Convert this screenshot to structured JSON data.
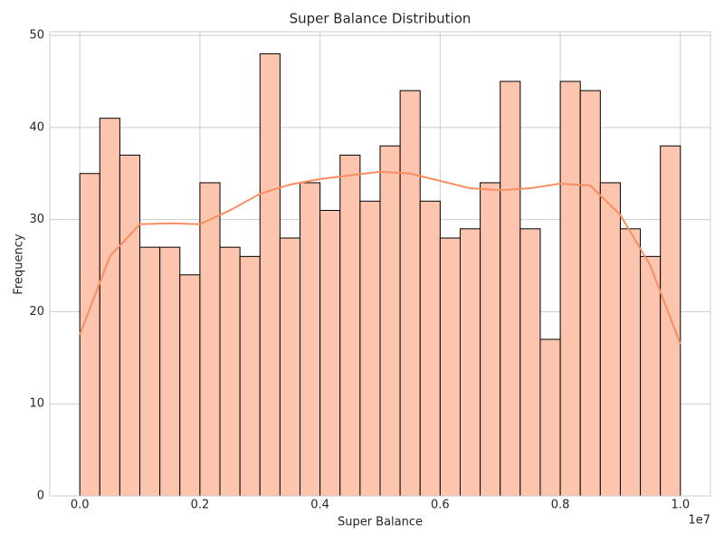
{
  "chart_data": {
    "type": "histogram",
    "title": "Super Balance Distribution",
    "xlabel": "Super Balance",
    "ylabel": "Frequency",
    "x_offset_label": "1e7",
    "bins": [
      0,
      333333,
      666667,
      1000000,
      1333333,
      1666667,
      2000000,
      2333333,
      2666667,
      3000000,
      3333333,
      3666667,
      4000000,
      4333333,
      4666667,
      5000000,
      5333333,
      5666667,
      6000000,
      6333333,
      6666667,
      7000000,
      7333333,
      7666667,
      8000000,
      8333333,
      8666667,
      9000000,
      9333333,
      9666667,
      10000000
    ],
    "counts": [
      35,
      41,
      37,
      27,
      27,
      24,
      34,
      27,
      26,
      48,
      28,
      34,
      31,
      37,
      32,
      38,
      44,
      32,
      28,
      29,
      34,
      45,
      29,
      17,
      45,
      44,
      34,
      29,
      26,
      38
    ],
    "color": "#fdc5ae",
    "edgecolor": "#000000",
    "kde": {
      "color": "#fc8d62",
      "x": [
        0,
        500000,
        1000000,
        1500000,
        2000000,
        2500000,
        3000000,
        3500000,
        4000000,
        4500000,
        5000000,
        5500000,
        6000000,
        6500000,
        7000000,
        7500000,
        8000000,
        8500000,
        9000000,
        9500000,
        10000000
      ],
      "y": [
        17.5,
        26,
        29.5,
        29.6,
        29.5,
        31,
        32.8,
        33.8,
        34.4,
        34.8,
        35.2,
        35,
        34.2,
        33.4,
        33.2,
        33.4,
        33.9,
        33.7,
        30.5,
        25,
        16.5
      ]
    },
    "xlim": [
      -500000,
      10500000
    ],
    "ylim": [
      0,
      50.4
    ],
    "xticks": [
      {
        "value": 0,
        "label": "0.0"
      },
      {
        "value": 2000000,
        "label": "0.2"
      },
      {
        "value": 4000000,
        "label": "0.4"
      },
      {
        "value": 6000000,
        "label": "0.6"
      },
      {
        "value": 8000000,
        "label": "0.8"
      },
      {
        "value": 10000000,
        "label": "1.0"
      }
    ],
    "yticks": [
      0,
      10,
      20,
      30,
      40,
      50
    ],
    "grid": true
  }
}
